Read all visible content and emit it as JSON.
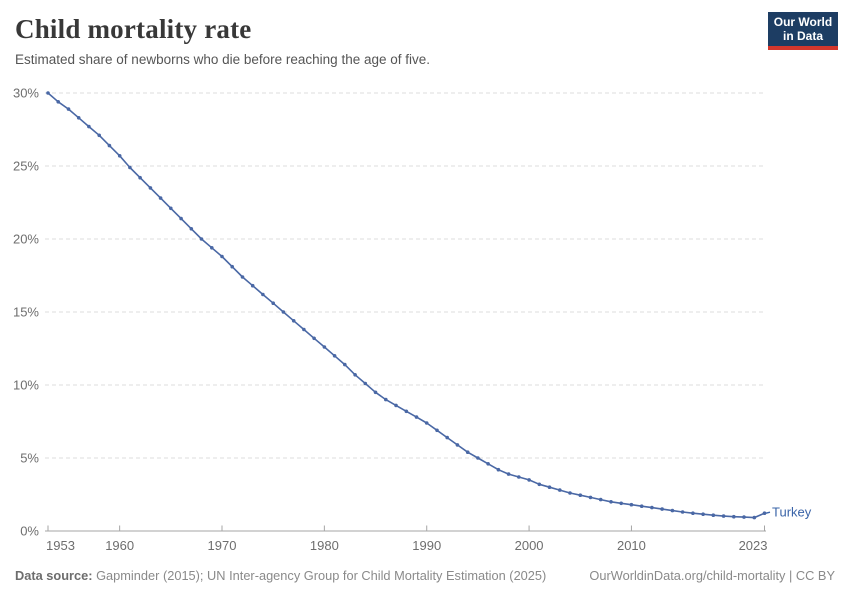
{
  "header": {
    "title": "Child mortality rate",
    "subtitle": "Estimated share of newborns who die before reaching the age of five.",
    "logo": {
      "line1": "Our World",
      "line2": "in Data"
    }
  },
  "chart_data": {
    "type": "line",
    "title": "Child mortality rate",
    "xlabel": "",
    "ylabel": "",
    "x": [
      1953,
      1954,
      1955,
      1956,
      1957,
      1958,
      1959,
      1960,
      1961,
      1962,
      1963,
      1964,
      1965,
      1966,
      1967,
      1968,
      1969,
      1970,
      1971,
      1972,
      1973,
      1974,
      1975,
      1976,
      1977,
      1978,
      1979,
      1980,
      1981,
      1982,
      1983,
      1984,
      1985,
      1986,
      1987,
      1988,
      1989,
      1990,
      1991,
      1992,
      1993,
      1994,
      1995,
      1996,
      1997,
      1998,
      1999,
      2000,
      2001,
      2002,
      2003,
      2004,
      2005,
      2006,
      2007,
      2008,
      2009,
      2010,
      2011,
      2012,
      2013,
      2014,
      2015,
      2016,
      2017,
      2018,
      2019,
      2020,
      2021,
      2022,
      2023
    ],
    "series": [
      {
        "name": "Turkey",
        "values": [
          30.0,
          29.4,
          28.9,
          28.3,
          27.7,
          27.1,
          26.4,
          25.7,
          24.9,
          24.2,
          23.5,
          22.8,
          22.1,
          21.4,
          20.7,
          20.0,
          19.4,
          18.8,
          18.1,
          17.4,
          16.8,
          16.2,
          15.6,
          15.0,
          14.4,
          13.8,
          13.2,
          12.6,
          12.0,
          11.4,
          10.7,
          10.1,
          9.5,
          9.0,
          8.6,
          8.2,
          7.8,
          7.4,
          6.9,
          6.4,
          5.9,
          5.4,
          5.0,
          4.6,
          4.2,
          3.9,
          3.7,
          3.5,
          3.2,
          3.0,
          2.8,
          2.6,
          2.45,
          2.3,
          2.15,
          2.0,
          1.9,
          1.8,
          1.7,
          1.6,
          1.5,
          1.4,
          1.3,
          1.22,
          1.15,
          1.08,
          1.02,
          0.98,
          0.95,
          0.92,
          1.22
        ]
      }
    ],
    "xlim": [
      1953,
      2023
    ],
    "ylim": [
      0,
      30
    ],
    "yticks": [
      0,
      5,
      10,
      15,
      20,
      25,
      30
    ],
    "ytick_suffix": "%",
    "xticks": [
      1953,
      1960,
      1970,
      1980,
      1990,
      2000,
      2010,
      2023
    ],
    "grid": "horizontal-dashed",
    "legend_position": "end-of-line-label",
    "end_label": "Turkey"
  },
  "colors": {
    "line": "#4a68a5",
    "entity_label": "#3a64a8",
    "grid": "#dcdcdc",
    "axis": "#a5a5a5",
    "tick": "#a5a5a5"
  },
  "footer": {
    "datasource_label": "Data source:",
    "datasource_text": " Gapminder (2015); UN Inter-agency Group for Child Mortality Estimation (2025)",
    "link_text": "OurWorldinData.org/child-mortality | CC BY"
  }
}
